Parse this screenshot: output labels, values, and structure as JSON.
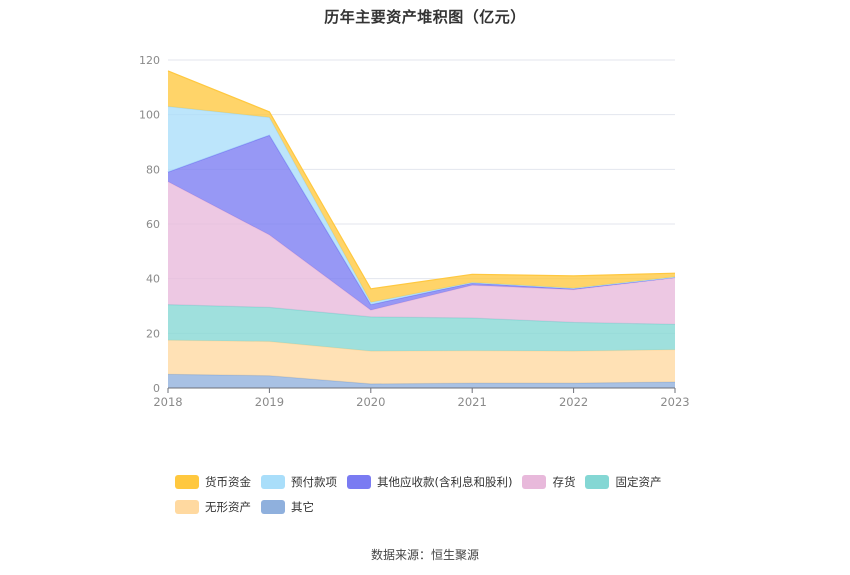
{
  "title": "历年主要资产堆积图（亿元）",
  "source": "数据来源：恒生聚源",
  "colors": {
    "货币资金": "#FFC83F",
    "预付款项": "#A9DEFA",
    "其他应收款(含利息和股利)": "#7A7BF2",
    "存货": "#E8B9DB",
    "固定资产": "#84D7D4",
    "无形资产": "#FFD9A0",
    "其它": "#8FB0DD"
  },
  "chart_data": {
    "type": "area",
    "stacked": true,
    "x": [
      "2018",
      "2019",
      "2020",
      "2021",
      "2022",
      "2023"
    ],
    "ylim": [
      0,
      120
    ],
    "yticks": [
      0,
      20,
      40,
      60,
      80,
      100,
      120
    ],
    "grid": true,
    "legend_position": "bottom",
    "series": [
      {
        "name": "其它",
        "values": [
          5,
          4.5,
          1.5,
          1.8,
          1.8,
          2.2
        ]
      },
      {
        "name": "无形资产",
        "values": [
          12.5,
          12.5,
          12,
          11.8,
          11.7,
          11.8
        ]
      },
      {
        "name": "固定资产",
        "values": [
          13,
          12.5,
          12.5,
          12,
          10.5,
          9.3
        ]
      },
      {
        "name": "存货",
        "values": [
          45,
          26.5,
          2.5,
          12,
          12,
          17
        ]
      },
      {
        "name": "其他应收款(含利息和股利)",
        "values": [
          3.5,
          36.5,
          2,
          0.8,
          0.3,
          0.2
        ]
      },
      {
        "name": "预付款项",
        "values": [
          24,
          6.5,
          0.8,
          0.2,
          0.2,
          0.1
        ]
      },
      {
        "name": "货币资金",
        "values": [
          13,
          2,
          5,
          3,
          4.5,
          1.4
        ]
      }
    ]
  },
  "legend_order": [
    "货币资金",
    "预付款项",
    "其他应收款(含利息和股利)",
    "存货",
    "固定资产",
    "无形资产",
    "其它"
  ]
}
